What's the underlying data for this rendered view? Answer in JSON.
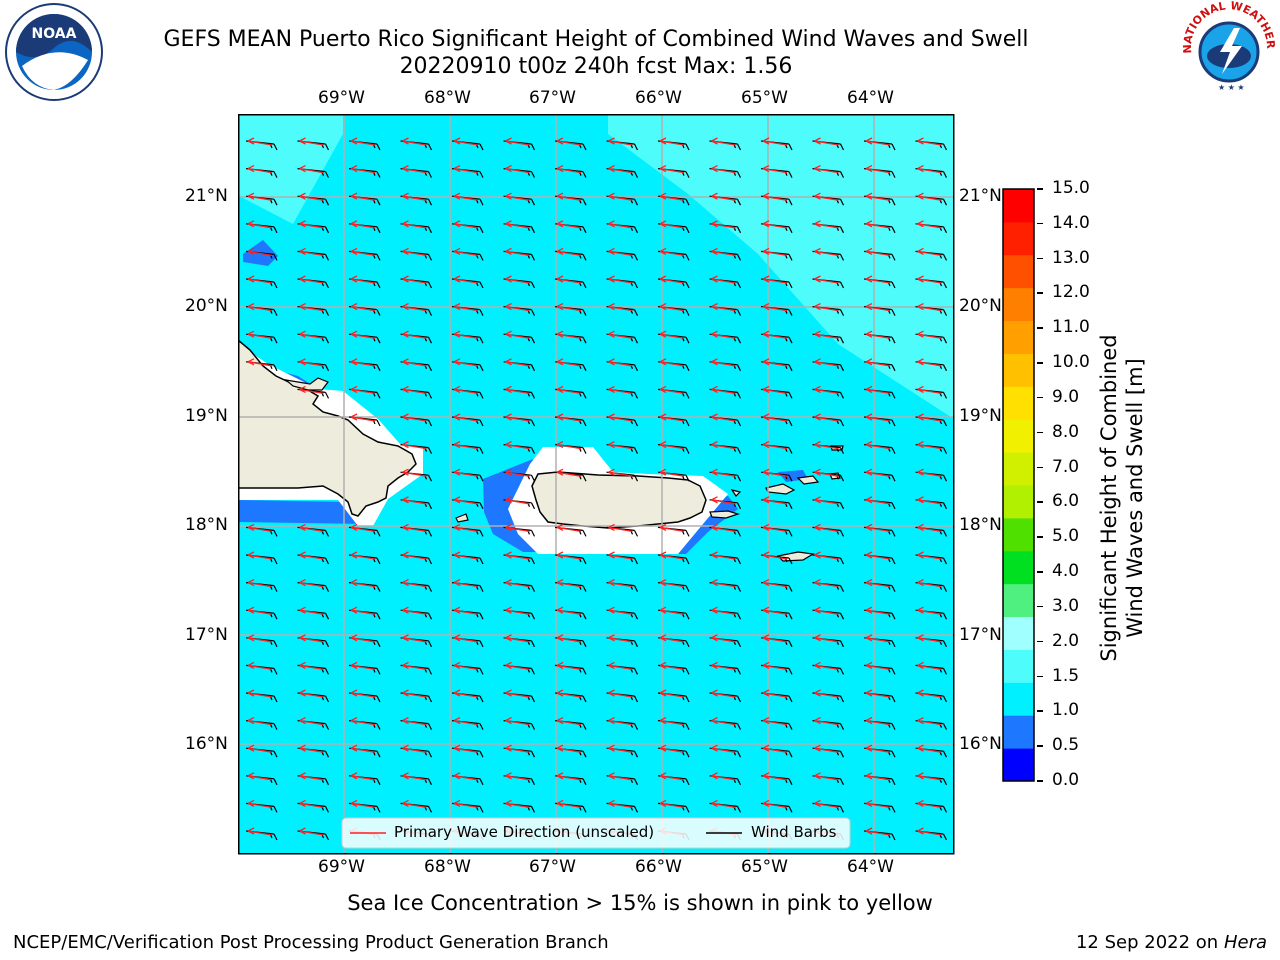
{
  "header": {
    "title_line1": "GEFS MEAN Puerto Rico Significant Height of Combined Wind Waves and Swell",
    "title_line2": "20220910 t00z 240h fcst   Max: 1.56"
  },
  "logos": {
    "left": "NOAA",
    "right_text": "NATIONAL WEATHER SERVICE"
  },
  "map": {
    "lon_labels": [
      "69°W",
      "68°W",
      "67°W",
      "66°W",
      "65°W",
      "64°W"
    ],
    "lat_labels": [
      "21°N",
      "20°N",
      "19°N",
      "18°N",
      "17°N",
      "16°N"
    ],
    "legend": {
      "wave_dir": "Primary Wave Direction (unscaled)",
      "wind_barbs": "Wind Barbs"
    },
    "colors": {
      "ocean": "#00f0ff",
      "light": "#4ffcfc",
      "land": "#eeecdc",
      "dir_arrow": "#ff2020",
      "barb": "#000000",
      "shallow": "#1e78ff"
    }
  },
  "colorbar": {
    "title": "Significant Height of Combined Wind Waves and Swell [m]",
    "title_line1": "Significant Height of Combined",
    "title_line2": "Wind Waves and Swell [m]",
    "tick_labels": [
      "0.0",
      "0.5",
      "1.0",
      "1.5",
      "2.0",
      "3.0",
      "4.0",
      "5.0",
      "6.0",
      "7.0",
      "8.0",
      "9.0",
      "10.0",
      "11.0",
      "12.0",
      "13.0",
      "14.0",
      "15.0"
    ],
    "colors": [
      "#0000ff",
      "#1e78ff",
      "#00f0ff",
      "#4ffcfc",
      "#a0ffff",
      "#50f080",
      "#00e020",
      "#50e000",
      "#b0f000",
      "#d0f000",
      "#f0f000",
      "#ffe000",
      "#ffc000",
      "#ffa000",
      "#ff8000",
      "#ff5000",
      "#ff2000",
      "#ff0000"
    ]
  },
  "footer": {
    "note": "Sea Ice Concentration > 15% is shown in pink to yellow",
    "left": "NCEP/EMC/Verification Post Processing Product Generation Branch",
    "date": "12 Sep 2022 on",
    "machine": "Hera"
  }
}
